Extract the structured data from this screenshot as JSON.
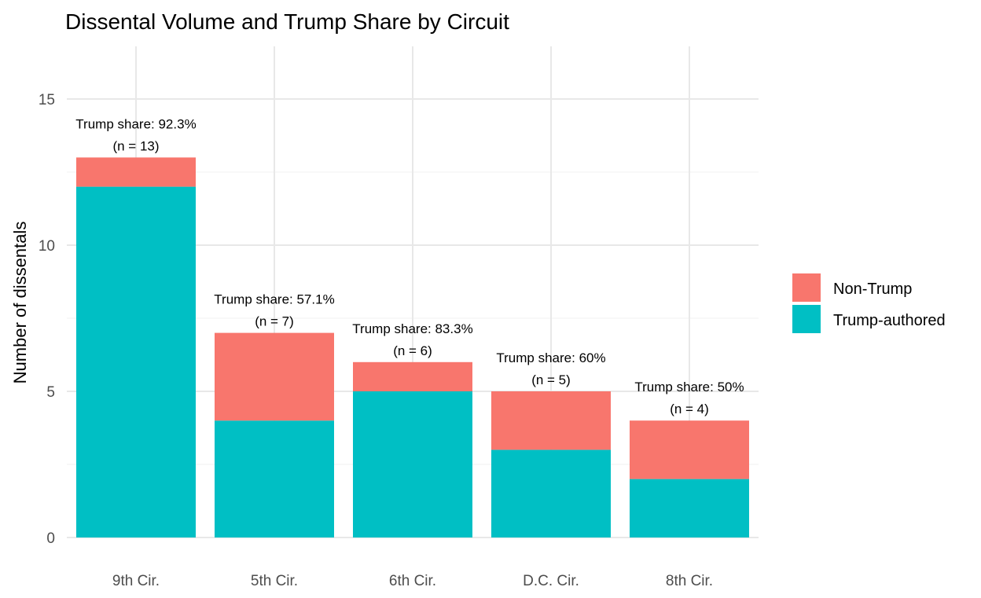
{
  "chart_data": {
    "type": "bar",
    "stacked": true,
    "title": "Dissental Volume and Trump Share by Circuit",
    "xlabel": "",
    "ylabel": "Number of dissentals",
    "ylim": [
      0,
      16.8
    ],
    "yticks": [
      0,
      5,
      10,
      15
    ],
    "grid": true,
    "legend_position": "right",
    "categories": [
      "9th Cir.",
      "5th Cir.",
      "6th Cir.",
      "D.C. Cir.",
      "8th Cir."
    ],
    "series": [
      {
        "name": "Trump-authored",
        "color": "#00BFC4",
        "values": [
          12,
          4,
          5,
          3,
          2
        ]
      },
      {
        "name": "Non-Trump",
        "color": "#F8766D",
        "values": [
          1,
          3,
          1,
          2,
          2
        ]
      }
    ],
    "legend": [
      "Non-Trump",
      "Trump-authored"
    ],
    "annotations": [
      {
        "line1": "Trump share: 92.3%",
        "line2": "(n = 13)"
      },
      {
        "line1": "Trump share: 57.1%",
        "line2": "(n = 7)"
      },
      {
        "line1": "Trump share: 83.3%",
        "line2": "(n = 6)"
      },
      {
        "line1": "Trump share: 60%",
        "line2": "(n = 5)"
      },
      {
        "line1": "Trump share: 50%",
        "line2": "(n = 4)"
      }
    ]
  }
}
